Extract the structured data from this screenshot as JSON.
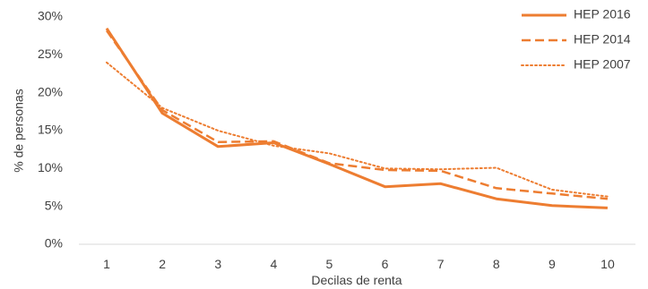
{
  "chart_data": {
    "type": "line",
    "xlabel": "Decilas de renta",
    "ylabel": "% de personas",
    "x": [
      1,
      2,
      3,
      4,
      5,
      6,
      7,
      8,
      9,
      10
    ],
    "x_tick_labels": [
      "1",
      "2",
      "3",
      "4",
      "5",
      "6",
      "7",
      "8",
      "9",
      "10"
    ],
    "ylim": [
      0,
      30
    ],
    "y_ticks": [
      0,
      5,
      10,
      15,
      20,
      25,
      30
    ],
    "y_tick_labels": [
      "0%",
      "5%",
      "10%",
      "15%",
      "20%",
      "25%",
      "30%"
    ],
    "grid": false,
    "legend_position": "top-right",
    "color": "#ED7D31",
    "series": [
      {
        "name": "HEP 2016",
        "style": "solid",
        "values": [
          28.5,
          17.3,
          12.9,
          13.4,
          10.6,
          7.6,
          8.0,
          6.0,
          5.1,
          4.8
        ]
      },
      {
        "name": "HEP 2014",
        "style": "dashed",
        "values": [
          28.2,
          17.7,
          13.5,
          13.6,
          10.7,
          9.8,
          9.7,
          7.4,
          6.7,
          6.0
        ]
      },
      {
        "name": "HEP 2007",
        "style": "dotted",
        "values": [
          24.0,
          18.0,
          15.0,
          13.0,
          12.0,
          10.0,
          9.9,
          10.1,
          7.2,
          6.3
        ]
      }
    ]
  }
}
